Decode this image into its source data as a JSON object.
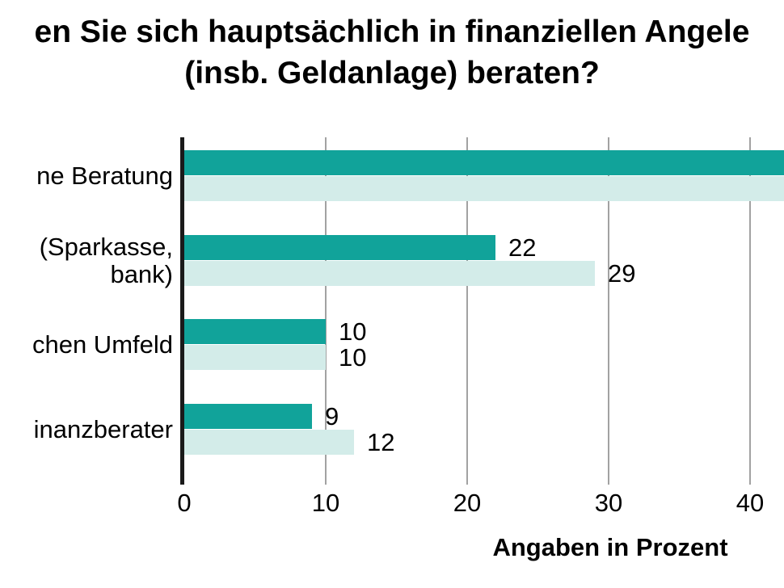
{
  "title": {
    "line1": "en Sie sich hauptsächlich in finanziellen Angele",
    "line2": "(insb. Geldanlage) beraten?"
  },
  "chart_data": {
    "type": "bar",
    "orientation": "horizontal",
    "title_visible_fragment": "en Sie sich hauptsächlich in finanziellen Angele (insb. Geldanlage) beraten?",
    "categories": [
      [
        "ne Beratung"
      ],
      [
        "(Sparkasse,",
        "bank)"
      ],
      [
        "chen Umfeld"
      ],
      [
        "inanzberater"
      ]
    ],
    "series": [
      {
        "name": "dark-teal-bars",
        "color": "#11A39A",
        "values": [
          null,
          22,
          10,
          9
        ]
      },
      {
        "name": "light-teal-bars",
        "color": "#D3ECE9",
        "values": [
          null,
          29,
          10,
          12
        ]
      }
    ],
    "clipped_right": [
      true,
      false,
      false,
      false
    ],
    "xlabel": "Angaben in Prozent",
    "x_ticks": [
      0,
      10,
      20,
      30,
      40
    ],
    "x_tick_labels": [
      "0",
      "10",
      "20",
      "30",
      "40"
    ],
    "xlim": [
      0,
      42.4
    ],
    "grid": true,
    "legend": "none",
    "colors": {
      "grid": "#a2a2a2",
      "axis": "#1a1a1a",
      "text": "#000000"
    }
  }
}
